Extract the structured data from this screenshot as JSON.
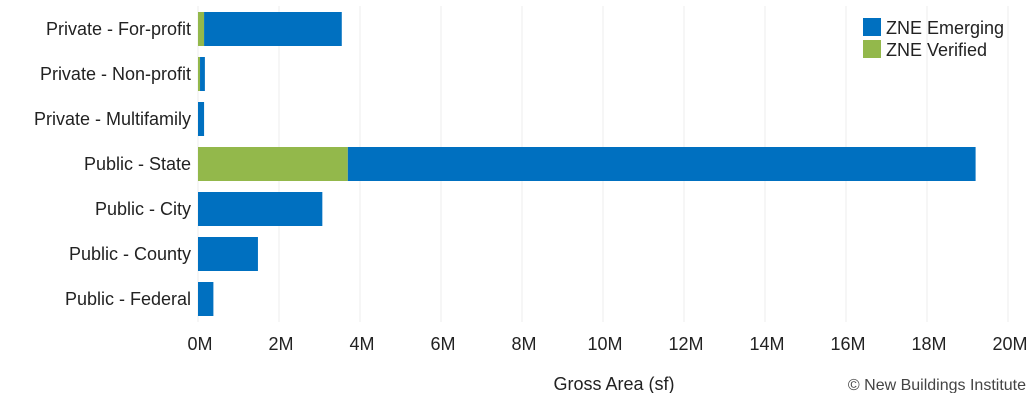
{
  "chart_data": {
    "type": "bar",
    "orientation": "horizontal",
    "stacked": true,
    "categories": [
      "Private - For-profit",
      "Private - Non-profit",
      "Private - Multifamily",
      "Public - State",
      "Public - City",
      "Public - County",
      "Public - Federal"
    ],
    "series": [
      {
        "name": "ZNE Verified",
        "color": "#93b84b",
        "values": [
          0.15,
          0.05,
          0,
          3.7,
          0,
          0,
          0
        ]
      },
      {
        "name": "ZNE Emerging",
        "color": "#0070c0",
        "values": [
          3.4,
          0.12,
          0.15,
          15.5,
          3.07,
          1.48,
          0.38
        ]
      }
    ],
    "xlabel": "Gross Area (sf)",
    "ylabel": "",
    "xlim": [
      0,
      20
    ],
    "x_ticks": [
      0,
      2,
      4,
      6,
      8,
      10,
      12,
      14,
      16,
      18,
      20
    ],
    "x_tick_labels": [
      "0M",
      "2M",
      "4M",
      "6M",
      "8M",
      "10M",
      "12M",
      "14M",
      "16M",
      "18M",
      "20M"
    ],
    "grid": "vertical",
    "legend": {
      "position": "top-right",
      "entries": [
        {
          "name": "ZNE Emerging",
          "color": "#0070c0"
        },
        {
          "name": "ZNE Verified",
          "color": "#93b84b"
        }
      ]
    },
    "credit": "© New Buildings Institute"
  }
}
